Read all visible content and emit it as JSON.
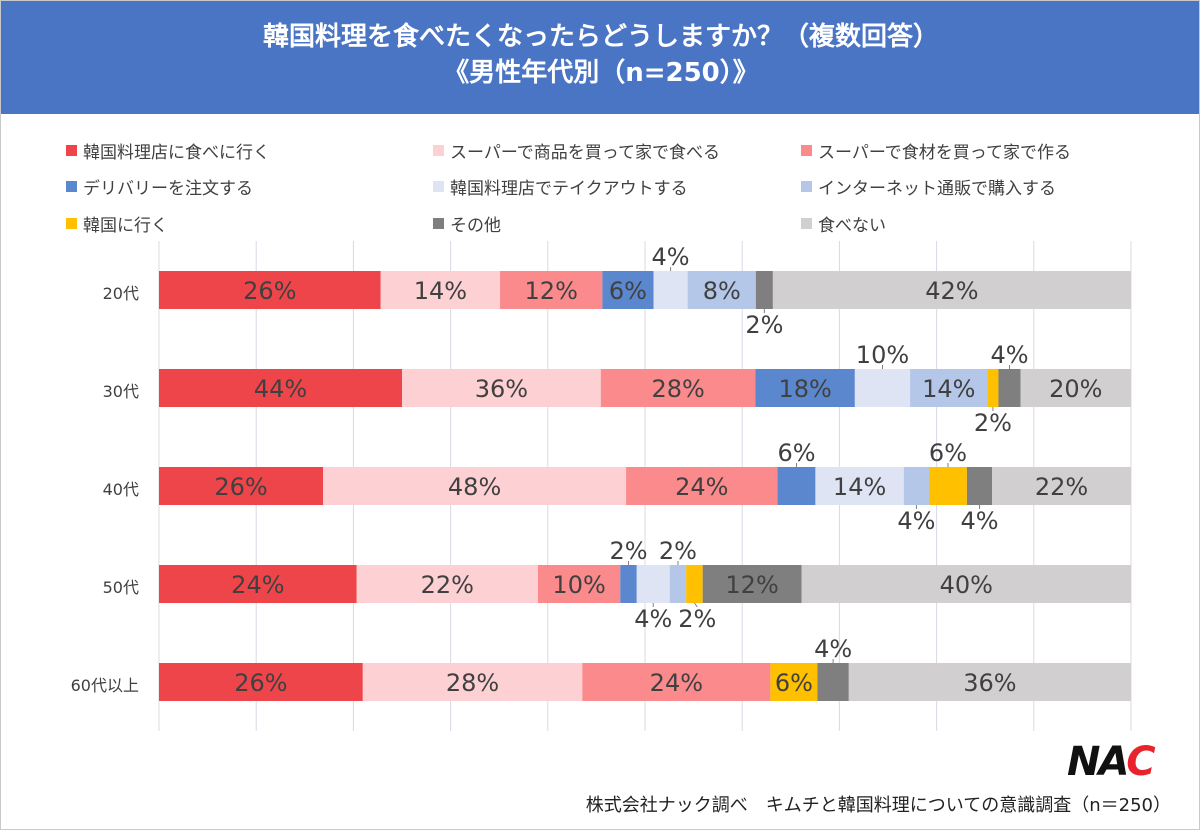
{
  "chart_data": {
    "type": "bar",
    "orientation": "horizontal",
    "stacked": "percent",
    "title": "韓国料理を食べたくなったらどうしますか？（複数回答）",
    "subtitle": "《男性年代別（n=250）》",
    "categories": [
      "20代",
      "30代",
      "40代",
      "50代",
      "60代以上"
    ],
    "series": [
      {
        "name": "韓国料理店に食べに行く",
        "color": "#ee454b",
        "values": [
          26,
          44,
          26,
          24,
          26
        ]
      },
      {
        "name": "スーパーで商品を買って家で食べる",
        "color": "#fdd0d3",
        "values": [
          14,
          36,
          48,
          22,
          28
        ]
      },
      {
        "name": "スーパーで食材を買って家で作る",
        "color": "#fa8a8c",
        "values": [
          12,
          28,
          24,
          10,
          24
        ]
      },
      {
        "name": "デリバリーを注文する",
        "color": "#5b87cf",
        "values": [
          6,
          18,
          6,
          2,
          0
        ]
      },
      {
        "name": "韓国料理店でテイクアウトする",
        "color": "#dee4f4",
        "values": [
          4,
          10,
          14,
          4,
          0
        ]
      },
      {
        "name": "インターネット通販で購入する",
        "color": "#b4c7e8",
        "values": [
          8,
          14,
          4,
          2,
          0
        ]
      },
      {
        "name": "韓国に行く",
        "color": "#ffc000",
        "values": [
          0,
          2,
          6,
          2,
          6
        ]
      },
      {
        "name": "その他",
        "color": "#7f7f7f",
        "values": [
          2,
          4,
          4,
          12,
          4
        ]
      },
      {
        "name": "食べない",
        "color": "#d1cfd0",
        "values": [
          42,
          20,
          22,
          40,
          36
        ]
      }
    ],
    "value_suffix": "%",
    "grid": true,
    "legend_position": "top"
  },
  "logo": {
    "text_1": "NA",
    "text_2": "C"
  },
  "footer": "株式会社ナック調べ　キムチと韓国料理についての意識調査（n＝250）"
}
